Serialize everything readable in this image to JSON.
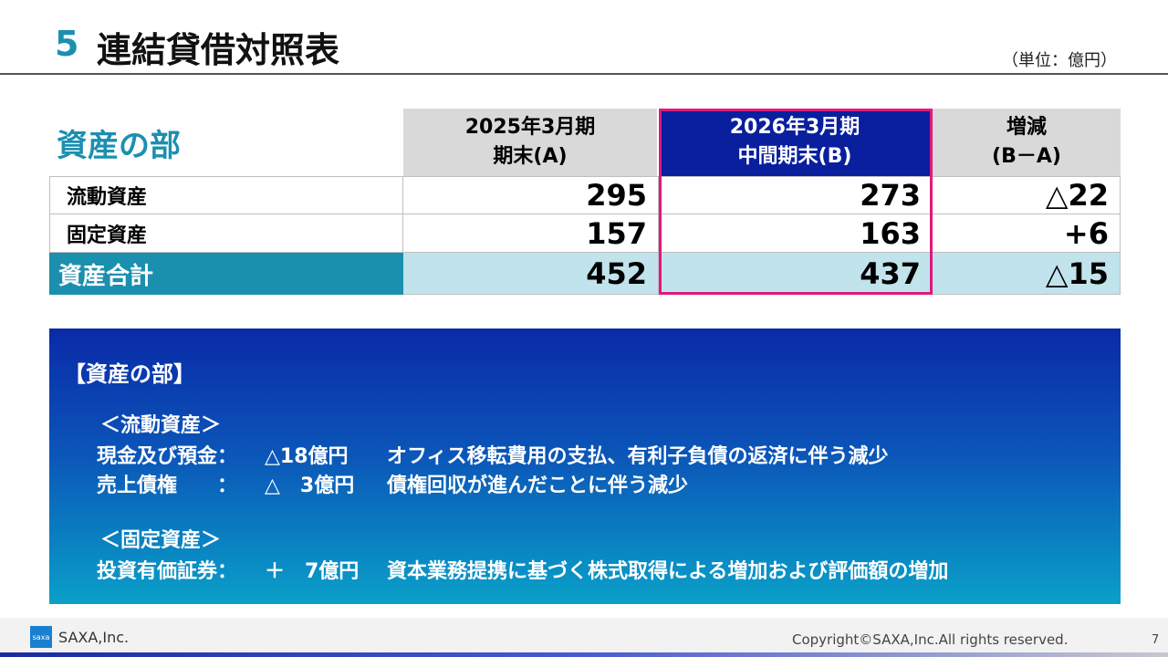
{
  "title": {
    "number": "5",
    "text": "連結貸借対照表",
    "unit": "（単位：億円）"
  },
  "table": {
    "section_label": "資産の部",
    "columns": [
      {
        "line1": "2025年3月期",
        "line2": "期末(A)"
      },
      {
        "line1": "2026年3月期",
        "line2": "中間期末(B)"
      },
      {
        "line1": "増減",
        "line2": "(B－A)"
      }
    ],
    "rows": [
      {
        "label": "流動資産",
        "a": "295",
        "b": "273",
        "diff": "△22"
      },
      {
        "label": "固定資産",
        "a": "157",
        "b": "163",
        "diff": "+6"
      }
    ],
    "total": {
      "label": "資産合計",
      "a": "452",
      "b": "437",
      "diff": "△15"
    }
  },
  "panel": {
    "heading": "【資産の部】",
    "current_heading": "＜流動資産＞",
    "current_items": [
      {
        "key": "現金及び預金：",
        "value": "△18億円",
        "desc": "オフィス移転費用の支払、有利子負債の返済に伴う減少"
      },
      {
        "key": "売上債権　　：",
        "value": "△　3億円",
        "desc": "債権回収が進んだことに伴う減少"
      }
    ],
    "fixed_heading": "＜固定資産＞",
    "fixed_items": [
      {
        "key": "投資有価証券：",
        "value": "＋　7億円",
        "desc": "資本業務提携に基づく株式取得による増加および評価額の増加"
      }
    ]
  },
  "footer": {
    "logo_text": "saxa",
    "company": "SAXA,Inc.",
    "copyright": "Copyright©SAXA,Inc.All rights reserved.",
    "page": "7"
  },
  "colors": {
    "accent": "#1c8fb0",
    "highlight_header": "#0a1f9e",
    "highlight_border": "#e0197e"
  }
}
